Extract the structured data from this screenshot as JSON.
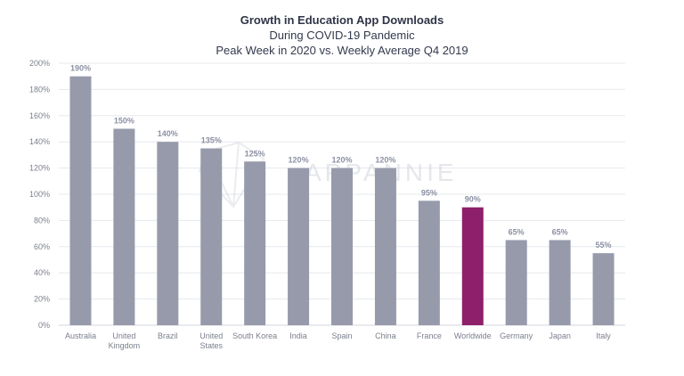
{
  "chart_data": {
    "type": "bar",
    "title": "Growth in Education App Downloads",
    "subtitle_lines": [
      "During COVID-19 Pandemic",
      "Peak Week in 2020 vs. Weekly Average Q4 2019"
    ],
    "categories": [
      [
        "Australia"
      ],
      [
        "United",
        "Kingdom"
      ],
      [
        "Brazil"
      ],
      [
        "United",
        "States"
      ],
      [
        "South Korea"
      ],
      [
        "India"
      ],
      [
        "Spain"
      ],
      [
        "China"
      ],
      [
        "France"
      ],
      [
        "Worldwide"
      ],
      [
        "Germany"
      ],
      [
        "Japan"
      ],
      [
        "Italy"
      ]
    ],
    "values": [
      190,
      150,
      140,
      135,
      125,
      120,
      120,
      120,
      95,
      90,
      65,
      65,
      55
    ],
    "value_labels": [
      "190%",
      "150%",
      "140%",
      "135%",
      "125%",
      "120%",
      "120%",
      "120%",
      "95%",
      "90%",
      "65%",
      "65%",
      "55%"
    ],
    "highlight_index": 9,
    "yticks": [
      "0%",
      "20%",
      "40%",
      "60%",
      "80%",
      "100%",
      "120%",
      "140%",
      "160%",
      "180%",
      "200%"
    ],
    "ylim": [
      0,
      200
    ],
    "grid": true,
    "xlabel": "",
    "ylabel": ""
  },
  "colors": {
    "bar": "#969aab",
    "highlight": "#8e1f6b",
    "highlight_label": "#8e1f6b",
    "grid": "#e6e8ee"
  },
  "watermark": "APPANNIE"
}
